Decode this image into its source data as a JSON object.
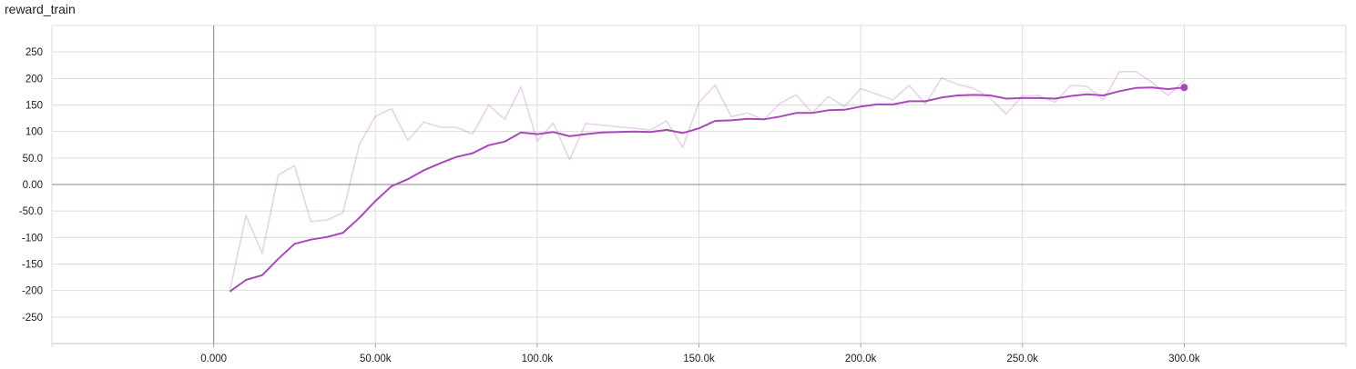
{
  "title": "reward_train",
  "chart_data": {
    "type": "line",
    "title": "reward_train",
    "xlabel": "",
    "ylabel": "",
    "xlim": [
      -50000,
      350000
    ],
    "ylim": [
      -300,
      300
    ],
    "x_ticks": [
      {
        "value": 0,
        "label": "0.000"
      },
      {
        "value": 50000,
        "label": "50.00k"
      },
      {
        "value": 100000,
        "label": "100.0k"
      },
      {
        "value": 150000,
        "label": "150.0k"
      },
      {
        "value": 200000,
        "label": "200.0k"
      },
      {
        "value": 250000,
        "label": "250.0k"
      },
      {
        "value": 300000,
        "label": "300.0k"
      }
    ],
    "y_ticks": [
      {
        "value": 250,
        "label": "250"
      },
      {
        "value": 200,
        "label": "200"
      },
      {
        "value": 150,
        "label": "150"
      },
      {
        "value": 100,
        "label": "100"
      },
      {
        "value": 50,
        "label": "50.0"
      },
      {
        "value": 0,
        "label": "0.00"
      },
      {
        "value": -50,
        "label": "-50.0"
      },
      {
        "value": -100,
        "label": "-100"
      },
      {
        "value": -150,
        "label": "-150"
      },
      {
        "value": -200,
        "label": "-200"
      },
      {
        "value": -250,
        "label": "-250"
      }
    ],
    "grid": true,
    "colors": {
      "smoothed": "#ab47bc",
      "raw": "#ab47bc",
      "raw_opacity": 0.25,
      "grid": "#dddddd",
      "zero_axis": "#9e9e9e"
    },
    "series": [
      {
        "role": "raw",
        "x": [
          5000,
          10000,
          15000,
          20000,
          25000,
          30000,
          35000,
          40000,
          45000,
          50000,
          55000,
          60000,
          65000,
          70000,
          75000,
          80000,
          85000,
          90000,
          95000,
          100000,
          105000,
          110000,
          115000,
          135000,
          140000,
          145000,
          150000,
          155000,
          160000,
          165000,
          170000,
          175000,
          180000,
          185000,
          190000,
          195000,
          200000,
          205000,
          210000,
          215000,
          220000,
          225000,
          230000,
          235000,
          240000,
          245000,
          250000,
          255000,
          260000,
          265000,
          270000,
          275000,
          280000,
          285000,
          290000,
          295000,
          300000
        ],
        "values": [
          -200,
          -58,
          -130,
          18,
          36,
          -70,
          -67,
          -53,
          75,
          129,
          143,
          83,
          118,
          108,
          108,
          95,
          150,
          123,
          184,
          82,
          116,
          47,
          115,
          103,
          120,
          70,
          155,
          187,
          128,
          135,
          122,
          153,
          169,
          135,
          166,
          147,
          181,
          170,
          160,
          187,
          152,
          201,
          189,
          181,
          163,
          133,
          167,
          168,
          155,
          187,
          185,
          160,
          213,
          213,
          193,
          168,
          196
        ]
      },
      {
        "role": "smoothed",
        "x": [
          5000,
          10000,
          15000,
          20000,
          25000,
          30000,
          35000,
          40000,
          45000,
          50000,
          55000,
          60000,
          65000,
          70000,
          75000,
          80000,
          85000,
          90000,
          95000,
          100000,
          105000,
          110000,
          115000,
          120000,
          125000,
          130000,
          135000,
          140000,
          145000,
          150000,
          155000,
          160000,
          165000,
          170000,
          175000,
          180000,
          185000,
          190000,
          195000,
          200000,
          205000,
          210000,
          215000,
          220000,
          225000,
          230000,
          235000,
          240000,
          245000,
          250000,
          255000,
          260000,
          265000,
          270000,
          275000,
          280000,
          285000,
          290000,
          295000,
          300000
        ],
        "values": [
          -202,
          -180,
          -171,
          -140,
          -112,
          -104,
          -99,
          -91,
          -63,
          -31,
          -3,
          10,
          27,
          40,
          52,
          59,
          74,
          81,
          98,
          95,
          99,
          91,
          95,
          98,
          99,
          100,
          99,
          103,
          97,
          106,
          120,
          121,
          124,
          123,
          128,
          135,
          135,
          140,
          141,
          147,
          151,
          151,
          157,
          157,
          164,
          168,
          169,
          168,
          162,
          163,
          163,
          162,
          167,
          170,
          168,
          176,
          182,
          183,
          180,
          183
        ]
      }
    ]
  }
}
